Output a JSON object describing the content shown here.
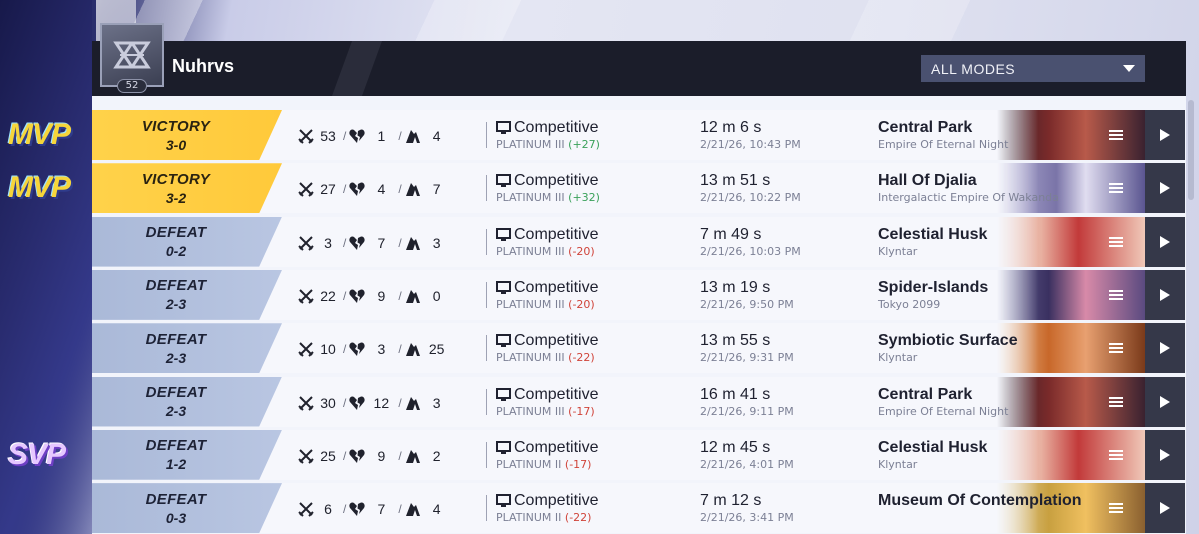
{
  "player": {
    "name": "Nuhrvs",
    "level": "52"
  },
  "filter": {
    "selected": "ALL MODES"
  },
  "colors": {
    "victory": "#ffd24a",
    "defeat": "#aab9d8",
    "positive": "#3aa15a",
    "negative": "#d0443a",
    "header": "#1b1d2a"
  },
  "icons": {
    "kills": "crossed-swords-icon",
    "deaths": "broken-heart-icon",
    "assists": "assist-hand-icon",
    "mode": "monitor-icon",
    "menu": "menu-icon",
    "play": "play-icon"
  },
  "matches": [
    {
      "badge": "MVP",
      "result": "VICTORY",
      "score": "3-0",
      "kills": "53",
      "deaths": "1",
      "assists": "4",
      "mode": "Competitive",
      "rank": "PLATINUM III",
      "delta": "(+27)",
      "delta_sign": "pos",
      "duration": "12 m 6 s",
      "date": "2/21/26, 10:43 PM",
      "map": "Central Park",
      "region": "Empire Of Eternal Night",
      "thumb": "central"
    },
    {
      "badge": "MVP",
      "result": "VICTORY",
      "score": "3-2",
      "kills": "27",
      "deaths": "4",
      "assists": "7",
      "mode": "Competitive",
      "rank": "PLATINUM III",
      "delta": "(+32)",
      "delta_sign": "pos",
      "duration": "13 m 51 s",
      "date": "2/21/26, 10:22 PM",
      "map": "Hall Of Djalia",
      "region": "Intergalactic Empire Of Wakanda",
      "thumb": "djalia"
    },
    {
      "badge": "",
      "result": "DEFEAT",
      "score": "0-2",
      "kills": "3",
      "deaths": "7",
      "assists": "3",
      "mode": "Competitive",
      "rank": "PLATINUM III",
      "delta": "(-20)",
      "delta_sign": "neg",
      "duration": "7 m 49 s",
      "date": "2/21/26, 10:03 PM",
      "map": "Celestial Husk",
      "region": "Klyntar",
      "thumb": "husk"
    },
    {
      "badge": "",
      "result": "DEFEAT",
      "score": "2-3",
      "kills": "22",
      "deaths": "9",
      "assists": "0",
      "mode": "Competitive",
      "rank": "PLATINUM III",
      "delta": "(-20)",
      "delta_sign": "neg",
      "duration": "13 m 19 s",
      "date": "2/21/26, 9:50 PM",
      "map": "Spider-Islands",
      "region": "Tokyo 2099",
      "thumb": "tokyo"
    },
    {
      "badge": "",
      "result": "DEFEAT",
      "score": "2-3",
      "kills": "10",
      "deaths": "3",
      "assists": "25",
      "mode": "Competitive",
      "rank": "PLATINUM III",
      "delta": "(-22)",
      "delta_sign": "neg",
      "duration": "13 m 55 s",
      "date": "2/21/26, 9:31 PM",
      "map": "Symbiotic Surface",
      "region": "Klyntar",
      "thumb": "symbiotic"
    },
    {
      "badge": "",
      "result": "DEFEAT",
      "score": "2-3",
      "kills": "30",
      "deaths": "12",
      "assists": "3",
      "mode": "Competitive",
      "rank": "PLATINUM III",
      "delta": "(-17)",
      "delta_sign": "neg",
      "duration": "16 m 41 s",
      "date": "2/21/26, 9:11 PM",
      "map": "Central Park",
      "region": "Empire Of Eternal Night",
      "thumb": "central"
    },
    {
      "badge": "SVP",
      "result": "DEFEAT",
      "score": "1-2",
      "kills": "25",
      "deaths": "9",
      "assists": "2",
      "mode": "Competitive",
      "rank": "PLATINUM II",
      "delta": "(-17)",
      "delta_sign": "neg",
      "duration": "12 m 45 s",
      "date": "2/21/26, 4:01 PM",
      "map": "Celestial Husk",
      "region": "Klyntar",
      "thumb": "husk"
    },
    {
      "badge": "",
      "result": "DEFEAT",
      "score": "0-3",
      "kills": "6",
      "deaths": "7",
      "assists": "4",
      "mode": "Competitive",
      "rank": "PLATINUM II",
      "delta": "(-22)",
      "delta_sign": "neg",
      "duration": "7 m 12 s",
      "date": "2/21/26, 3:41 PM",
      "map": "Museum Of Contemplation",
      "region": "",
      "thumb": "museum"
    }
  ]
}
